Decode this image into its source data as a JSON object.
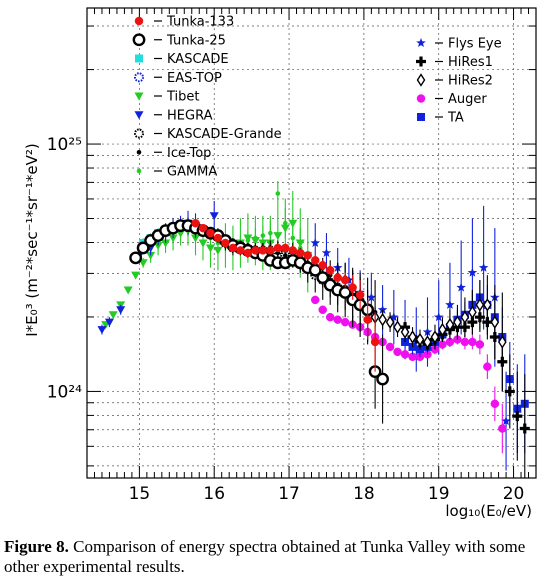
{
  "chart_data": {
    "type": "scatter",
    "title": "",
    "xlabel": "log₁₀(E₀/eV)",
    "ylabel": "I*E₀³ (m⁻²*sec⁻¹*sr⁻¹*eV²)",
    "x_ticks": [
      "15",
      "16",
      "17",
      "18",
      "19",
      "20"
    ],
    "y_ticks": [
      "10²⁵",
      "10²⁴"
    ],
    "xlim": [
      14.3,
      20.3
    ],
    "ylim_log10": [
      23.65,
      25.55
    ],
    "y_scale": "log",
    "grid": true,
    "legend_left": [
      {
        "name": "Tunka-133",
        "marker": "circle",
        "color": "#ee1111",
        "fill": true
      },
      {
        "name": "Tunka-25",
        "marker": "ring-thick",
        "color": "#000000"
      },
      {
        "name": "KASCADE",
        "marker": "square",
        "color": "#22dddd",
        "fill": true
      },
      {
        "name": "EAS-TOP",
        "marker": "ring-dotted",
        "color": "#1122dd"
      },
      {
        "name": "Tibet",
        "marker": "triangle-down",
        "color": "#22cc22",
        "fill": true
      },
      {
        "name": "HEGRA",
        "marker": "triangle-down",
        "color": "#1122dd",
        "fill": true
      },
      {
        "name": "KASCADE-Grande",
        "marker": "ring-dotted",
        "color": "#000000"
      },
      {
        "name": "Ice-Top",
        "marker": "dot",
        "color": "#000000"
      },
      {
        "name": "GAMMA",
        "marker": "dot",
        "color": "#22cc22"
      }
    ],
    "legend_right": [
      {
        "name": "Flys Eye",
        "marker": "star",
        "color": "#1122dd"
      },
      {
        "name": "HiRes1",
        "marker": "cross",
        "color": "#000000"
      },
      {
        "name": "HiRes2",
        "marker": "diamond-open",
        "color": "#000000"
      },
      {
        "name": "Auger",
        "marker": "circle",
        "color": "#ee11ee",
        "fill": true
      },
      {
        "name": "TA",
        "marker": "square",
        "color": "#1122dd",
        "fill": true
      }
    ],
    "series": [
      {
        "name": "Tunka-133",
        "marker": "circle",
        "color": "#ee1111",
        "x": [
          15.75,
          15.85,
          15.95,
          16.05,
          16.15,
          16.25,
          16.35,
          16.45,
          16.55,
          16.65,
          16.75,
          16.85,
          16.95,
          17.05,
          17.15,
          17.25,
          17.35,
          17.45,
          17.55,
          17.65,
          17.75,
          17.85,
          17.95,
          18.05,
          18.15
        ],
        "y": [
          24.68,
          24.66,
          24.64,
          24.62,
          24.6,
          24.58,
          24.57,
          24.56,
          24.57,
          24.57,
          24.57,
          24.58,
          24.58,
          24.57,
          24.56,
          24.55,
          24.53,
          24.51,
          24.49,
          24.46,
          24.45,
          24.42,
          24.39,
          24.29,
          24.2
        ],
        "yerr": [
          0.01,
          0.01,
          0.01,
          0.01,
          0.01,
          0.01,
          0.01,
          0.01,
          0.01,
          0.01,
          0.01,
          0.01,
          0.01,
          0.01,
          0.01,
          0.01,
          0.02,
          0.02,
          0.02,
          0.02,
          0.03,
          0.05,
          0.06,
          0.08,
          0.12
        ]
      },
      {
        "name": "Tunka-25",
        "marker": "ring-thick",
        "color": "#000000",
        "x": [
          14.95,
          15.05,
          15.15,
          15.25,
          15.35,
          15.45,
          15.55,
          15.65,
          15.75,
          15.85,
          15.95,
          16.05,
          16.15,
          16.25,
          16.35,
          16.45,
          16.55,
          16.65,
          16.75,
          16.85,
          16.95,
          17.05,
          17.15,
          17.25,
          17.35,
          17.45,
          17.55,
          17.65,
          17.75,
          17.85,
          17.95,
          18.05,
          18.15,
          18.25
        ],
        "y": [
          24.54,
          24.58,
          24.61,
          24.63,
          24.65,
          24.66,
          24.67,
          24.67,
          24.66,
          24.65,
          24.64,
          24.63,
          24.61,
          24.59,
          24.58,
          24.57,
          24.56,
          24.55,
          24.53,
          24.52,
          24.52,
          24.53,
          24.52,
          24.5,
          24.49,
          24.46,
          24.43,
          24.41,
          24.4,
          24.37,
          24.35,
          24.33,
          24.08,
          24.05
        ],
        "yerr": [
          0.01,
          0.01,
          0.01,
          0.01,
          0.01,
          0.01,
          0.01,
          0.01,
          0.01,
          0.01,
          0.01,
          0.01,
          0.01,
          0.01,
          0.01,
          0.02,
          0.02,
          0.02,
          0.02,
          0.02,
          0.02,
          0.02,
          0.03,
          0.03,
          0.03,
          0.04,
          0.05,
          0.06,
          0.07,
          0.09,
          0.11,
          0.13,
          0.15,
          0.18
        ]
      },
      {
        "name": "KASCADE",
        "marker": "square",
        "color": "#22dddd",
        "x": [
          15.05,
          15.15,
          15.25,
          15.35,
          15.45,
          15.55,
          15.65
        ],
        "y": [
          24.6,
          24.62,
          24.64,
          24.65,
          24.66,
          24.67,
          24.67
        ],
        "yerr": [
          0.02,
          0.02,
          0.02,
          0.02,
          0.02,
          0.02,
          0.02
        ]
      },
      {
        "name": "EAS-TOP",
        "marker": "ring-dotted",
        "color": "#1122dd",
        "x": [
          15.05,
          15.15,
          15.25,
          15.35,
          15.45,
          15.55,
          15.65,
          15.75,
          15.85
        ],
        "y": [
          24.58,
          24.61,
          24.63,
          24.65,
          24.66,
          24.67,
          24.67,
          24.66,
          24.65
        ],
        "yerr": [
          0.02,
          0.02,
          0.02,
          0.02,
          0.02,
          0.02,
          0.02,
          0.02,
          0.02
        ]
      },
      {
        "name": "Tibet",
        "marker": "triangle-down",
        "color": "#22cc22",
        "x": [
          14.55,
          14.65,
          14.75,
          14.85,
          14.95,
          15.05,
          15.15,
          15.25,
          15.35,
          15.45,
          15.55,
          15.65,
          15.75,
          15.85,
          15.95,
          16.05,
          16.15,
          16.25,
          16.35,
          16.45,
          16.55,
          16.65,
          16.75,
          16.85,
          16.95,
          17.05,
          17.15,
          17.25
        ],
        "y": [
          24.27,
          24.31,
          24.35,
          24.41,
          24.47,
          24.52,
          24.55,
          24.59,
          24.6,
          24.62,
          24.64,
          24.65,
          24.62,
          24.6,
          24.58,
          24.57,
          24.59,
          24.58,
          24.6,
          24.62,
          24.61,
          24.6,
          24.6,
          24.63,
          24.66,
          24.68,
          24.6,
          24.55
        ],
        "yerr": [
          0.01,
          0.01,
          0.01,
          0.01,
          0.01,
          0.02,
          0.03,
          0.04,
          0.04,
          0.05,
          0.05,
          0.06,
          0.07,
          0.07,
          0.08,
          0.08,
          0.09,
          0.09,
          0.1,
          0.1,
          0.1,
          0.11,
          0.11,
          0.12,
          0.12,
          0.13,
          0.14,
          0.15
        ]
      },
      {
        "name": "HEGRA",
        "marker": "triangle-down",
        "color": "#1122dd",
        "x": [
          14.5,
          14.6,
          14.75,
          15.0,
          15.15,
          15.25,
          15.35,
          15.45,
          15.55,
          15.65,
          15.75,
          16.0
        ],
        "y": [
          24.25,
          24.28,
          24.33,
          24.55,
          24.58,
          24.62,
          24.64,
          24.66,
          24.67,
          24.68,
          24.67,
          24.71
        ],
        "yerr": [
          0.02,
          0.02,
          0.02,
          0.03,
          0.03,
          0.03,
          0.04,
          0.04,
          0.04,
          0.05,
          0.05,
          0.06
        ]
      },
      {
        "name": "KASCADE-Grande",
        "marker": "ring-dotted",
        "color": "#000000",
        "x": [
          16.05,
          16.15,
          16.25,
          16.35,
          16.45,
          16.55,
          16.65,
          16.75,
          16.85,
          16.95,
          17.05,
          17.15,
          17.25,
          17.35,
          17.45,
          17.55,
          17.65,
          17.75,
          17.85,
          17.95
        ],
        "y": [
          24.63,
          24.6,
          24.58,
          24.58,
          24.57,
          24.57,
          24.57,
          24.57,
          24.57,
          24.55,
          24.55,
          24.53,
          24.5,
          24.47,
          24.45,
          24.44,
          24.42,
          24.41,
          24.38,
          24.35
        ],
        "yerr": [
          0.03,
          0.03,
          0.03,
          0.03,
          0.03,
          0.03,
          0.03,
          0.04,
          0.04,
          0.04,
          0.05,
          0.05,
          0.06,
          0.07,
          0.08,
          0.09,
          0.1,
          0.11,
          0.12,
          0.13
        ]
      },
      {
        "name": "Ice-Top",
        "marker": "dot",
        "color": "#000000",
        "x": [
          15.55,
          15.65,
          15.75,
          15.85,
          15.95,
          16.05,
          16.15,
          16.25,
          16.35,
          16.45,
          16.55,
          16.65,
          16.75,
          16.85,
          16.95,
          17.05,
          17.15,
          17.25,
          17.35,
          17.45,
          17.55,
          17.65,
          17.75,
          17.85,
          17.95,
          18.05,
          18.15
        ],
        "y": [
          24.66,
          24.67,
          24.67,
          24.66,
          24.65,
          24.63,
          24.62,
          24.61,
          24.6,
          24.59,
          24.58,
          24.58,
          24.57,
          24.56,
          24.55,
          24.54,
          24.53,
          24.52,
          24.5,
          24.5,
          24.47,
          24.47,
          24.46,
          24.42,
          24.35,
          24.3,
          24.32
        ],
        "yerr": [
          0.01,
          0.01,
          0.01,
          0.01,
          0.01,
          0.01,
          0.01,
          0.01,
          0.01,
          0.01,
          0.01,
          0.02,
          0.02,
          0.02,
          0.02,
          0.02,
          0.03,
          0.03,
          0.03,
          0.04,
          0.04,
          0.05,
          0.06,
          0.07,
          0.09,
          0.11,
          0.13
        ]
      },
      {
        "name": "GAMMA",
        "marker": "dot",
        "color": "#22cc22",
        "x": [
          15.55,
          15.65,
          15.75,
          15.85,
          15.95,
          16.05,
          16.15,
          16.25,
          16.35,
          16.45,
          16.55,
          16.65,
          16.75,
          16.85,
          16.95,
          17.05,
          17.15
        ],
        "y": [
          24.64,
          24.66,
          24.66,
          24.64,
          24.62,
          24.6,
          24.59,
          24.59,
          24.6,
          24.61,
          24.62,
          24.63,
          24.64,
          24.8,
          24.68,
          24.62,
          24.58
        ],
        "yerr": [
          0.02,
          0.02,
          0.02,
          0.02,
          0.02,
          0.03,
          0.03,
          0.03,
          0.03,
          0.04,
          0.04,
          0.04,
          0.05,
          0.05,
          0.06,
          0.07,
          0.08
        ]
      },
      {
        "name": "Flys Eye",
        "marker": "star",
        "color": "#1122dd",
        "x": [
          17.35,
          17.5,
          17.65,
          17.8,
          17.95,
          18.1,
          18.25,
          18.4,
          18.55,
          18.7,
          18.85,
          19.0,
          19.15,
          19.3,
          19.45,
          19.6,
          19.75,
          19.9
        ],
        "y": [
          24.6,
          24.56,
          24.5,
          24.45,
          24.4,
          24.38,
          24.33,
          24.3,
          24.25,
          24.21,
          24.24,
          24.3,
          24.35,
          24.42,
          24.48,
          24.5,
          24.38,
          23.88
        ],
        "yerr": [
          0.08,
          0.08,
          0.08,
          0.09,
          0.09,
          0.1,
          0.1,
          0.11,
          0.12,
          0.13,
          0.14,
          0.15,
          0.17,
          0.19,
          0.22,
          0.25,
          0.28,
          0.2
        ]
      },
      {
        "name": "HiRes1",
        "marker": "cross",
        "color": "#000000",
        "x": [
          18.55,
          18.65,
          18.75,
          18.85,
          18.95,
          19.05,
          19.15,
          19.25,
          19.35,
          19.45,
          19.55,
          19.65,
          19.75,
          19.85,
          19.95,
          20.05,
          20.15
        ],
        "y": [
          24.26,
          24.22,
          24.2,
          24.19,
          24.21,
          24.23,
          24.25,
          24.26,
          24.26,
          24.28,
          24.3,
          24.28,
          24.22,
          24.12,
          24.0,
          23.9,
          23.85
        ],
        "yerr": [
          0.02,
          0.02,
          0.02,
          0.02,
          0.02,
          0.03,
          0.03,
          0.04,
          0.04,
          0.05,
          0.06,
          0.07,
          0.09,
          0.12,
          0.15,
          0.18,
          0.22
        ]
      },
      {
        "name": "HiRes2",
        "marker": "diamond-open",
        "color": "#000000",
        "x": [
          17.85,
          17.95,
          18.05,
          18.15,
          18.25,
          18.35,
          18.45,
          18.55,
          18.65,
          18.75,
          18.85,
          18.95,
          19.05,
          19.15,
          19.25,
          19.35,
          19.45,
          19.55,
          19.65,
          19.75,
          19.85
        ],
        "y": [
          24.4,
          24.37,
          24.33,
          24.3,
          24.29,
          24.28,
          24.26,
          24.24,
          24.22,
          24.21,
          24.2,
          24.22,
          24.25,
          24.27,
          24.28,
          24.3,
          24.32,
          24.35,
          24.35,
          24.28,
          24.2
        ],
        "yerr": [
          0.05,
          0.05,
          0.04,
          0.04,
          0.04,
          0.04,
          0.04,
          0.04,
          0.04,
          0.04,
          0.04,
          0.05,
          0.05,
          0.06,
          0.07,
          0.08,
          0.09,
          0.1,
          0.12,
          0.15,
          0.2
        ]
      },
      {
        "name": "Auger",
        "marker": "circle",
        "color": "#ee11ee",
        "x": [
          17.35,
          17.45,
          17.55,
          17.65,
          17.75,
          17.85,
          17.95,
          18.05,
          18.15,
          18.25,
          18.35,
          18.45,
          18.55,
          18.65,
          18.75,
          18.85,
          18.95,
          19.05,
          19.15,
          19.25,
          19.35,
          19.45,
          19.55,
          19.65,
          19.75,
          19.85
        ],
        "y": [
          24.37,
          24.33,
          24.3,
          24.29,
          24.28,
          24.27,
          24.26,
          24.24,
          24.22,
          24.2,
          24.18,
          24.16,
          24.15,
          24.14,
          24.14,
          24.15,
          24.17,
          24.19,
          24.2,
          24.21,
          24.2,
          24.2,
          24.19,
          24.1,
          23.95,
          23.85
        ],
        "yerr": [
          0.01,
          0.01,
          0.01,
          0.01,
          0.01,
          0.01,
          0.01,
          0.01,
          0.01,
          0.01,
          0.01,
          0.01,
          0.01,
          0.01,
          0.01,
          0.01,
          0.02,
          0.02,
          0.02,
          0.02,
          0.03,
          0.03,
          0.04,
          0.05,
          0.07,
          0.1
        ]
      },
      {
        "name": "TA",
        "marker": "square",
        "color": "#1122dd",
        "x": [
          18.55,
          18.65,
          18.75,
          18.85,
          18.95,
          19.05,
          19.15,
          19.25,
          19.35,
          19.45,
          19.55,
          19.65,
          19.75,
          19.85,
          19.95,
          20.05,
          20.15
        ],
        "y": [
          24.2,
          24.18,
          24.17,
          24.18,
          24.2,
          24.23,
          24.26,
          24.29,
          24.31,
          24.35,
          24.38,
          24.35,
          24.3,
          24.22,
          24.05,
          23.93,
          23.95
        ],
        "yerr": [
          0.03,
          0.03,
          0.03,
          0.03,
          0.03,
          0.03,
          0.04,
          0.04,
          0.05,
          0.06,
          0.07,
          0.08,
          0.1,
          0.12,
          0.15,
          0.18,
          0.2
        ]
      }
    ]
  },
  "caption": {
    "label": "Figure 8.",
    "text": "Comparison of energy spectra obtained at Tunka Valley with some other experimental results."
  }
}
